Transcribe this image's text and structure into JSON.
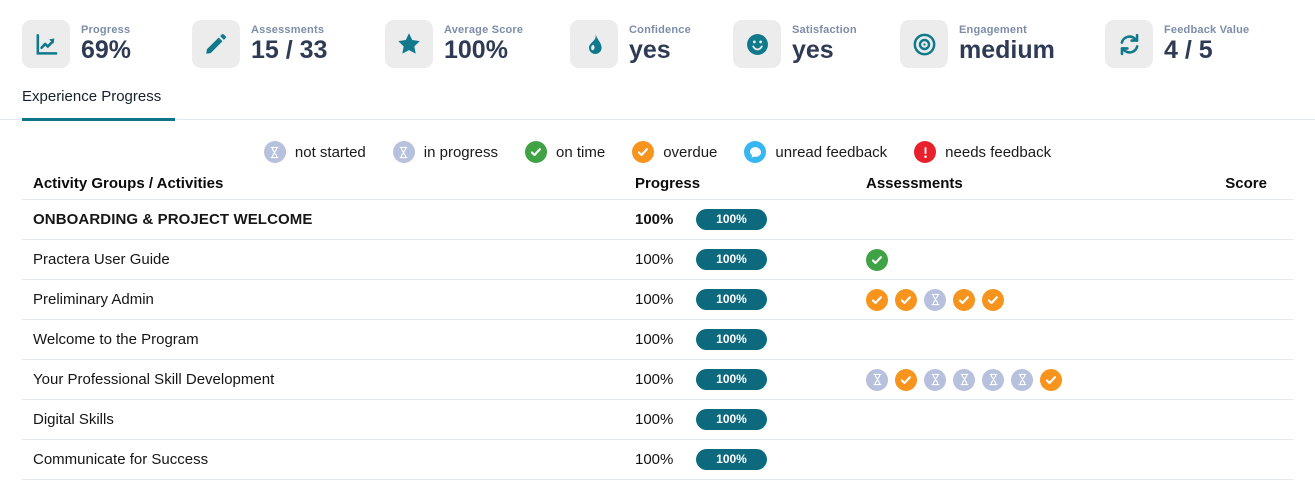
{
  "kpis": [
    {
      "label": "Progress",
      "value": "69%",
      "icon": "chart-line-icon"
    },
    {
      "label": "Assessments",
      "value": "15 / 33",
      "icon": "pencil-icon"
    },
    {
      "label": "Average Score",
      "value": "100%",
      "icon": "star-icon"
    },
    {
      "label": "Confidence",
      "value": "yes",
      "icon": "flame-icon"
    },
    {
      "label": "Satisfaction",
      "value": "yes",
      "icon": "smiley-icon"
    },
    {
      "label": "Engagement",
      "value": "medium",
      "icon": "target-icon"
    },
    {
      "label": "Feedback Value",
      "value": "4 / 5",
      "icon": "sync-icon"
    }
  ],
  "tabs": [
    {
      "label": "Experience Progress",
      "active": true
    }
  ],
  "legend": [
    {
      "label": "not started",
      "status": "not-started"
    },
    {
      "label": "in progress",
      "status": "in-progress"
    },
    {
      "label": "on time",
      "status": "on-time"
    },
    {
      "label": "overdue",
      "status": "overdue"
    },
    {
      "label": "unread feedback",
      "status": "unread-feedback"
    },
    {
      "label": "needs feedback",
      "status": "needs-feedback"
    }
  ],
  "table": {
    "columns": [
      "Activity Groups / Activities",
      "Progress",
      "Assessments",
      "Score"
    ],
    "rows": [
      {
        "name": "ONBOARDING & PROJECT WELCOME",
        "group": true,
        "progress": "100%",
        "progress_badge": "100%",
        "assessments": [],
        "score": ""
      },
      {
        "name": "Practera User Guide",
        "group": false,
        "progress": "100%",
        "progress_badge": "100%",
        "assessments": [
          "on-time"
        ],
        "score": ""
      },
      {
        "name": "Preliminary Admin",
        "group": false,
        "progress": "100%",
        "progress_badge": "100%",
        "assessments": [
          "overdue",
          "overdue",
          "not-started",
          "overdue",
          "overdue"
        ],
        "score": ""
      },
      {
        "name": "Welcome to the Program",
        "group": false,
        "progress": "100%",
        "progress_badge": "100%",
        "assessments": [],
        "score": ""
      },
      {
        "name": "Your Professional Skill Development",
        "group": false,
        "progress": "100%",
        "progress_badge": "100%",
        "assessments": [
          "not-started",
          "overdue",
          "not-started",
          "not-started",
          "not-started",
          "not-started",
          "overdue"
        ],
        "score": ""
      },
      {
        "name": "Digital Skills",
        "group": false,
        "progress": "100%",
        "progress_badge": "100%",
        "assessments": [],
        "score": ""
      },
      {
        "name": "Communicate for Success",
        "group": false,
        "progress": "100%",
        "progress_badge": "100%",
        "assessments": [],
        "score": ""
      }
    ]
  },
  "colors": {
    "teal_icon": "#11798c",
    "pill": "#0d6a7e",
    "tab_underline": "#0e7488",
    "icon_box_bg": "#ececec",
    "status_colors": {
      "not-started": "#b7c1dd",
      "in-progress": "#b7c1dd",
      "on-time": "#3fa345",
      "overdue": "#f7941e",
      "unread-feedback": "#38b6f0",
      "needs-feedback": "#e8202c"
    }
  }
}
